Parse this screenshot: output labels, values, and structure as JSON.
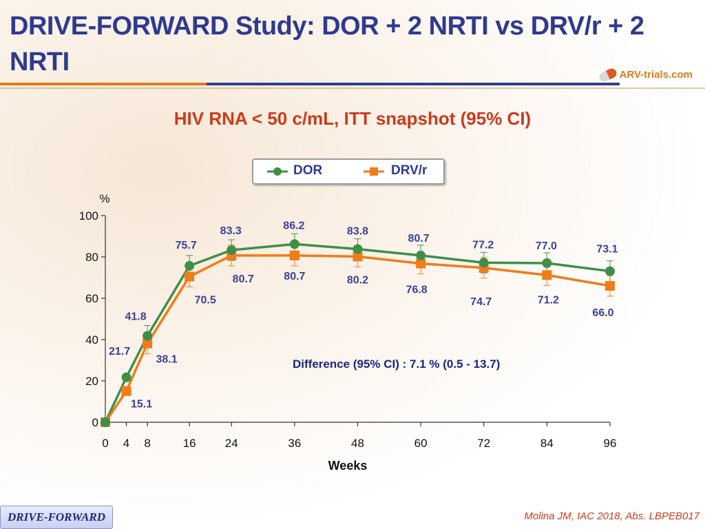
{
  "slide": {
    "title": "DRIVE-FORWARD Study: DOR + 2 NRTI vs DRV/r + 2 NRTI",
    "logo_text": "ARV-trials.com",
    "subtitle": "HIV RNA < 50 c/mL, ITT snapshot (95% CI)",
    "footer_tag": "DRIVE-FORWARD",
    "source": "Molina JM, IAC 2018, Abs. LBPEB017"
  },
  "colors": {
    "dor": "#3e8f48",
    "drv": "#f07c1a",
    "label": "#3a3f98",
    "title": "#2f3a8f",
    "accent": "#cc3a1c"
  },
  "chart_data": {
    "type": "line",
    "xlabel": "Weeks",
    "ylabel": "%",
    "ylim": [
      0,
      100
    ],
    "yticks": [
      0,
      20,
      40,
      60,
      80,
      100
    ],
    "x": [
      0,
      4,
      8,
      16,
      24,
      36,
      48,
      60,
      72,
      84,
      96
    ],
    "series": [
      {
        "name": "DOR",
        "values": [
          0,
          21.7,
          41.8,
          75.7,
          83.3,
          86.2,
          83.8,
          80.7,
          77.2,
          77.0,
          73.1
        ]
      },
      {
        "name": "DRV/r",
        "values": [
          0,
          15.1,
          38.1,
          70.5,
          80.7,
          80.7,
          80.2,
          76.8,
          74.7,
          71.2,
          66.0
        ]
      }
    ],
    "annotation": "Difference (95% CI) : 7.1 % (0.5 - 13.7)"
  }
}
